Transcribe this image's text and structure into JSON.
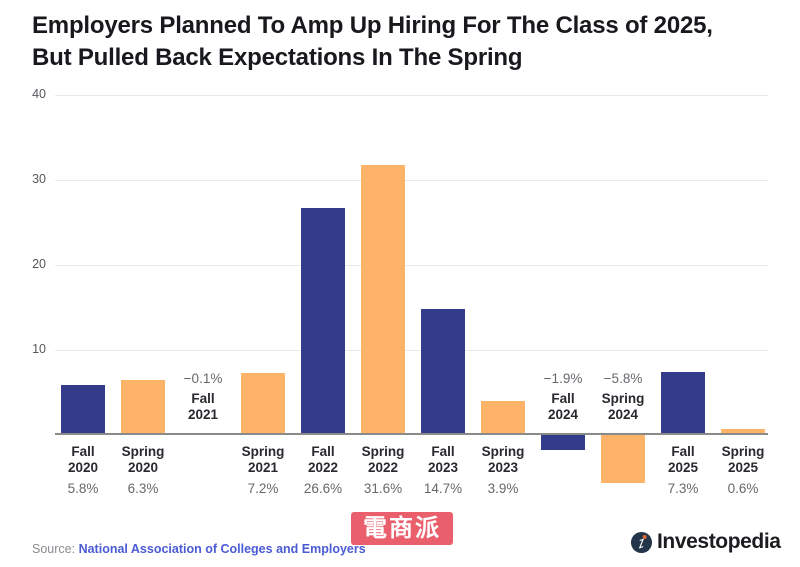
{
  "title": {
    "lines": [
      "Employers Planned To Amp Up Hiring For The Class of 2025,",
      "But Pulled Back Expectations In The Spring"
    ]
  },
  "chart_data": {
    "type": "bar",
    "title": "Employers Planned To Amp Up Hiring For The Class of 2025, But Pulled Back Expectations In The Spring",
    "xlabel": "",
    "ylabel": "",
    "ylim": [
      -8,
      40
    ],
    "yticks": [
      10,
      20,
      30,
      40
    ],
    "grid": true,
    "bar_colors": {
      "navy": "#333c8a",
      "orange": "#fdb469"
    },
    "categories": [
      "Fall 2020",
      "Spring 2020",
      "Fall 2021",
      "Spring 2021",
      "Fall 2022",
      "Spring 2022",
      "Fall 2023",
      "Spring 2023",
      "Fall 2024",
      "Spring 2024",
      "Fall 2025",
      "Spring 2025"
    ],
    "values": [
      5.8,
      6.3,
      -0.1,
      7.2,
      26.6,
      31.6,
      14.7,
      3.9,
      -1.9,
      -5.8,
      7.3,
      0.6
    ],
    "points": [
      {
        "season": "Fall",
        "year": "2020",
        "value": 5.8,
        "display": "5.8%",
        "color": "navy",
        "label_position": "below"
      },
      {
        "season": "Spring",
        "year": "2020",
        "value": 6.3,
        "display": "6.3%",
        "color": "orange",
        "label_position": "below"
      },
      {
        "season": "Fall",
        "year": "2021",
        "value": -0.1,
        "display": "−0.1%",
        "color": "navy",
        "label_position": "above"
      },
      {
        "season": "Spring",
        "year": "2021",
        "value": 7.2,
        "display": "7.2%",
        "color": "orange",
        "label_position": "below"
      },
      {
        "season": "Fall",
        "year": "2022",
        "value": 26.6,
        "display": "26.6%",
        "color": "navy",
        "label_position": "below"
      },
      {
        "season": "Spring",
        "year": "2022",
        "value": 31.6,
        "display": "31.6%",
        "color": "orange",
        "label_position": "below"
      },
      {
        "season": "Fall",
        "year": "2023",
        "value": 14.7,
        "display": "14.7%",
        "color": "navy",
        "label_position": "below"
      },
      {
        "season": "Spring",
        "year": "2023",
        "value": 3.9,
        "display": "3.9%",
        "color": "orange",
        "label_position": "below"
      },
      {
        "season": "Fall",
        "year": "2024",
        "value": -1.9,
        "display": "−1.9%",
        "color": "navy",
        "label_position": "above"
      },
      {
        "season": "Spring",
        "year": "2024",
        "value": -5.8,
        "display": "−5.8%",
        "color": "orange",
        "label_position": "above"
      },
      {
        "season": "Fall",
        "year": "2025",
        "value": 7.3,
        "display": "7.3%",
        "color": "navy",
        "label_position": "below"
      },
      {
        "season": "Spring",
        "year": "2025",
        "value": 0.6,
        "display": "0.6%",
        "color": "orange",
        "label_position": "below"
      }
    ]
  },
  "watermark": {
    "text": "電商派",
    "background": "#e95f6b"
  },
  "footer": {
    "source_prefix": "Source:",
    "source_link": "National Association of Colleges and Employers",
    "link_color": "#4a5bd4",
    "brand": "Investopedia"
  }
}
